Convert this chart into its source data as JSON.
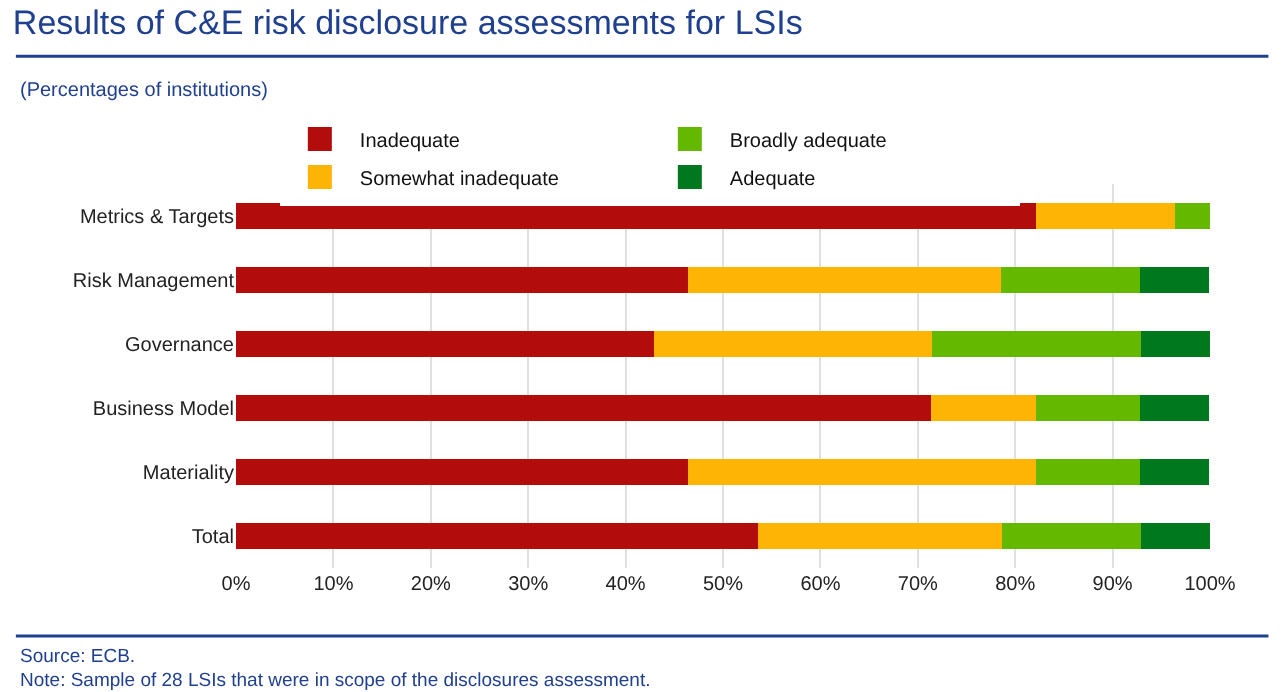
{
  "chart_data": {
    "type": "bar",
    "orientation": "horizontal",
    "stacked": true,
    "title": "Results of C&E risk disclosure assessments for LSIs",
    "subtitle": "(Percentages of institutions)",
    "categories": [
      "Metrics & Targets",
      "Risk Management",
      "Governance",
      "Business Model",
      "Materiality",
      "Total"
    ],
    "series": [
      {
        "name": "Inadequate",
        "color": "#b20c0c",
        "values": [
          82.1,
          46.4,
          42.9,
          71.4,
          46.4,
          53.6
        ]
      },
      {
        "name": "Somewhat inadequate",
        "color": "#fdb404",
        "values": [
          14.3,
          32.1,
          28.6,
          10.7,
          35.7,
          25.0
        ]
      },
      {
        "name": "Broadly adequate",
        "color": "#65b800",
        "values": [
          3.6,
          14.3,
          21.4,
          10.7,
          10.7,
          14.3
        ]
      },
      {
        "name": "Adequate",
        "color": "#00781e",
        "values": [
          0,
          7.1,
          7.1,
          7.1,
          7.1,
          7.1
        ]
      }
    ],
    "xlim": [
      0,
      100
    ],
    "xticks": [
      {
        "value": 0,
        "label": "0%"
      },
      {
        "value": 10,
        "label": "10%"
      },
      {
        "value": 20,
        "label": "20%"
      },
      {
        "value": 30,
        "label": "30%"
      },
      {
        "value": 40,
        "label": "40%"
      },
      {
        "value": 50,
        "label": "50%"
      },
      {
        "value": 60,
        "label": "60%"
      },
      {
        "value": 70,
        "label": "70%"
      },
      {
        "value": 80,
        "label": "80%"
      },
      {
        "value": 90,
        "label": "90%"
      },
      {
        "value": 100,
        "label": "100%"
      }
    ],
    "grid": true,
    "legend": "top",
    "annotations": [
      "Source: ECB.",
      "Note: Sample of 28 LSIs that were in scope of the disclosures assessment."
    ]
  }
}
